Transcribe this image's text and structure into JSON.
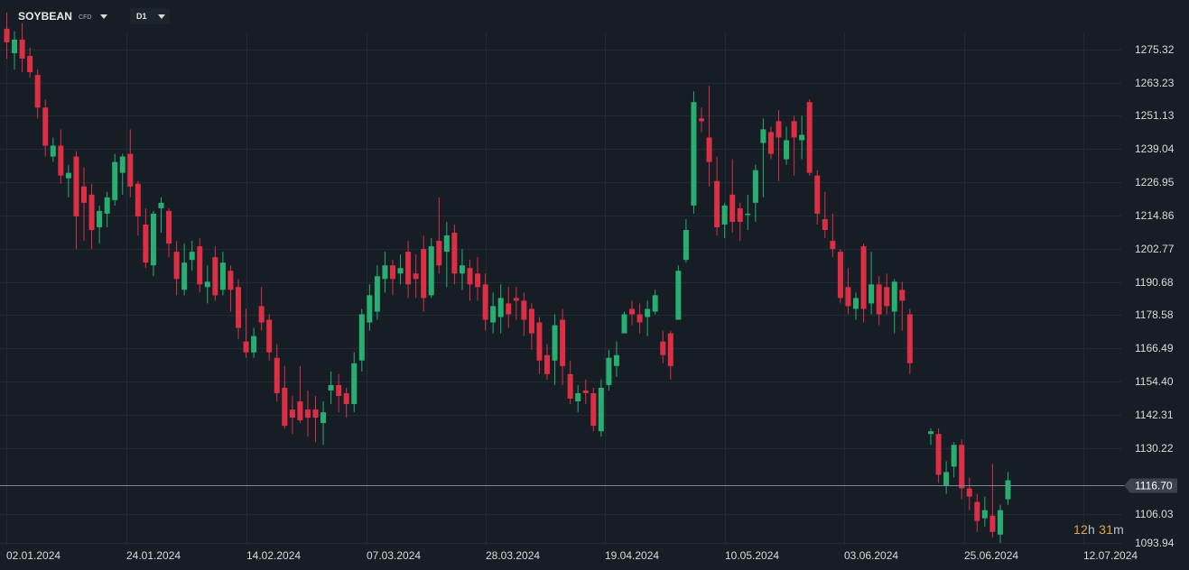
{
  "header": {
    "symbol": "SOYBEAN",
    "instrument_type": "CFD",
    "timeframe": "D1"
  },
  "countdown": {
    "hours": "12",
    "hours_unit": "h",
    "minutes": "31",
    "minutes_unit": "m"
  },
  "colors": {
    "background": "#161d24",
    "up": "#27ae70",
    "down": "#dc2f45",
    "grid": "#222b34",
    "axis_text": "#d6dbe0",
    "countdown": "#e0a447"
  },
  "icons": {
    "symbol_dropdown": "chevron-down-icon",
    "timeframe_dropdown": "chevron-down-icon"
  },
  "chart_data": {
    "type": "candlestick",
    "ylim": [
      1088,
      1289
    ],
    "y_ticks": [
      "1275.32",
      "1263.23",
      "1251.13",
      "1239.04",
      "1226.95",
      "1214.86",
      "1202.77",
      "1190.68",
      "1178.58",
      "1166.49",
      "1154.40",
      "1142.31",
      "1130.22",
      "1106.03",
      "1093.94"
    ],
    "x_ticks": [
      "02.01.2024",
      "24.01.2024",
      "14.02.2024",
      "07.03.2024",
      "28.03.2024",
      "19.04.2024",
      "10.05.2024",
      "03.06.2024",
      "25.06.2024",
      "12.07.2024"
    ],
    "current_price": "1116.70",
    "candles": [
      [
        1283,
        1278,
        1289,
        1272
      ],
      [
        1274,
        1279,
        1282,
        1268
      ],
      [
        1279,
        1272,
        1285,
        1267
      ],
      [
        1273,
        1267,
        1276,
        1265
      ],
      [
        1266,
        1254,
        1268,
        1250
      ],
      [
        1254,
        1240,
        1257,
        1236
      ],
      [
        1236,
        1240,
        1243,
        1234
      ],
      [
        1240,
        1229,
        1246,
        1226
      ],
      [
        1228,
        1230,
        1233,
        1221
      ],
      [
        1236,
        1214,
        1238,
        1202
      ],
      [
        1225,
        1219,
        1232,
        1205
      ],
      [
        1222,
        1209,
        1226,
        1202
      ],
      [
        1210,
        1216,
        1218,
        1204
      ],
      [
        1215,
        1221,
        1223,
        1210
      ],
      [
        1220,
        1234,
        1237,
        1218
      ],
      [
        1230,
        1236,
        1237,
        1222
      ],
      [
        1237,
        1225,
        1246,
        1221
      ],
      [
        1226,
        1214,
        1227,
        1207
      ],
      [
        1211,
        1197,
        1217,
        1195
      ],
      [
        1196,
        1215,
        1216,
        1192
      ],
      [
        1217,
        1219,
        1221,
        1208
      ],
      [
        1216,
        1204,
        1217,
        1199
      ],
      [
        1201,
        1191,
        1205,
        1185
      ],
      [
        1187,
        1197,
        1204,
        1185
      ],
      [
        1198,
        1201,
        1205,
        1194
      ],
      [
        1203,
        1189,
        1206,
        1186
      ],
      [
        1188,
        1190,
        1196,
        1182
      ],
      [
        1199,
        1185,
        1203,
        1183
      ],
      [
        1187,
        1197,
        1201,
        1185
      ],
      [
        1194,
        1187,
        1196,
        1179
      ],
      [
        1188,
        1173,
        1191,
        1169
      ],
      [
        1168,
        1164,
        1180,
        1162
      ],
      [
        1164,
        1170,
        1173,
        1162
      ],
      [
        1181,
        1175,
        1188,
        1172
      ],
      [
        1176,
        1164,
        1178,
        1161
      ],
      [
        1162,
        1149,
        1167,
        1146
      ],
      [
        1151,
        1137,
        1159,
        1136
      ],
      [
        1143,
        1140,
        1148,
        1134
      ],
      [
        1146,
        1139,
        1159,
        1138
      ],
      [
        1143,
        1140,
        1150,
        1133
      ],
      [
        1143,
        1140,
        1148,
        1131
      ],
      [
        1138,
        1142,
        1146,
        1130
      ],
      [
        1150,
        1152,
        1157,
        1145
      ],
      [
        1152,
        1148,
        1156,
        1142
      ],
      [
        1149,
        1145,
        1151,
        1140
      ],
      [
        1145,
        1160,
        1164,
        1142
      ],
      [
        1161,
        1178,
        1180,
        1157
      ],
      [
        1175,
        1185,
        1189,
        1172
      ],
      [
        1179,
        1192,
        1196,
        1176
      ],
      [
        1191,
        1196,
        1201,
        1186
      ],
      [
        1196,
        1191,
        1198,
        1185
      ],
      [
        1193,
        1195,
        1200,
        1189
      ],
      [
        1201,
        1189,
        1205,
        1184
      ],
      [
        1193,
        1191,
        1200,
        1184
      ],
      [
        1202,
        1184,
        1207,
        1179
      ],
      [
        1185,
        1203,
        1206,
        1184
      ],
      [
        1205,
        1196,
        1221,
        1193
      ],
      [
        1201,
        1207,
        1212,
        1188
      ],
      [
        1208,
        1193,
        1211,
        1189
      ],
      [
        1193,
        1196,
        1202,
        1187
      ],
      [
        1195,
        1189,
        1198,
        1183
      ],
      [
        1193,
        1188,
        1199,
        1183
      ],
      [
        1189,
        1176,
        1193,
        1172
      ],
      [
        1175,
        1181,
        1186,
        1171
      ],
      [
        1177,
        1184,
        1189,
        1171
      ],
      [
        1182,
        1178,
        1188,
        1173
      ],
      [
        1184,
        1183,
        1188,
        1176
      ],
      [
        1183,
        1176,
        1186,
        1170
      ],
      [
        1180,
        1171,
        1182,
        1165
      ],
      [
        1175,
        1161,
        1177,
        1156
      ],
      [
        1163,
        1156,
        1167,
        1154
      ],
      [
        1161,
        1174,
        1178,
        1152
      ],
      [
        1176,
        1159,
        1180,
        1152
      ],
      [
        1156,
        1147,
        1161,
        1145
      ],
      [
        1146,
        1149,
        1152,
        1142
      ],
      [
        1150,
        1149,
        1154,
        1145
      ],
      [
        1149,
        1137,
        1151,
        1135
      ],
      [
        1135,
        1151,
        1154,
        1133
      ],
      [
        1152,
        1162,
        1165,
        1150
      ],
      [
        1159,
        1163,
        1168,
        1155
      ],
      [
        1171,
        1178,
        1179,
        1175
      ],
      [
        1180,
        1178,
        1183,
        1174
      ],
      [
        1178,
        1175,
        1182,
        1171
      ],
      [
        1177,
        1180,
        1183,
        1170
      ],
      [
        1179,
        1185,
        1187,
        1178
      ],
      [
        1168,
        1163,
        1172,
        1160
      ],
      [
        1171,
        1159,
        1172,
        1154
      ],
      [
        1176,
        1194,
        1196,
        1176
      ],
      [
        1198,
        1209,
        1213,
        1197
      ],
      [
        1218,
        1256,
        1260,
        1215
      ],
      [
        1250,
        1249,
        1254,
        1245
      ],
      [
        1243,
        1234,
        1262,
        1225
      ],
      [
        1227,
        1210,
        1236,
        1207
      ],
      [
        1211,
        1218,
        1219,
        1206
      ],
      [
        1222,
        1212,
        1235,
        1208
      ],
      [
        1217,
        1212,
        1219,
        1205
      ],
      [
        1215,
        1215,
        1222,
        1209
      ],
      [
        1219,
        1231,
        1233,
        1212
      ],
      [
        1241,
        1246,
        1250,
        1221
      ],
      [
        1245,
        1237,
        1247,
        1235
      ],
      [
        1249,
        1243,
        1253,
        1227
      ],
      [
        1235,
        1242,
        1247,
        1233
      ],
      [
        1249,
        1243,
        1251,
        1229
      ],
      [
        1242,
        1244,
        1251,
        1235
      ],
      [
        1256,
        1230,
        1257,
        1229
      ],
      [
        1229,
        1215,
        1231,
        1211
      ],
      [
        1213,
        1209,
        1223,
        1206
      ],
      [
        1205,
        1202,
        1215,
        1199
      ],
      [
        1201,
        1184,
        1202,
        1182
      ],
      [
        1188,
        1181,
        1195,
        1178
      ],
      [
        1180,
        1184,
        1186,
        1176
      ],
      [
        1203,
        1180,
        1204,
        1175
      ],
      [
        1182,
        1189,
        1201,
        1178
      ],
      [
        1189,
        1178,
        1192,
        1174
      ],
      [
        1188,
        1181,
        1193,
        1178
      ],
      [
        1179,
        1190,
        1191,
        1171
      ],
      [
        1187,
        1183,
        1190,
        1172
      ],
      [
        1178,
        1160,
        1180,
        1156
      ]
    ],
    "candles_tail": [
      [
        1134,
        1135,
        1136,
        1130
      ],
      [
        1134,
        1119,
        1136,
        1116
      ],
      [
        1115,
        1120,
        1124,
        1112
      ],
      [
        1122,
        1130,
        1131,
        1118
      ],
      [
        1130,
        1114,
        1132,
        1110
      ],
      [
        1114,
        1111,
        1118,
        1106
      ],
      [
        1109,
        1102,
        1112,
        1098
      ],
      [
        1103,
        1106,
        1111,
        1100
      ],
      [
        1104,
        1098,
        1123,
        1096
      ],
      [
        1097,
        1106,
        1108,
        1094
      ],
      [
        1110,
        1117,
        1120,
        1108
      ]
    ]
  }
}
